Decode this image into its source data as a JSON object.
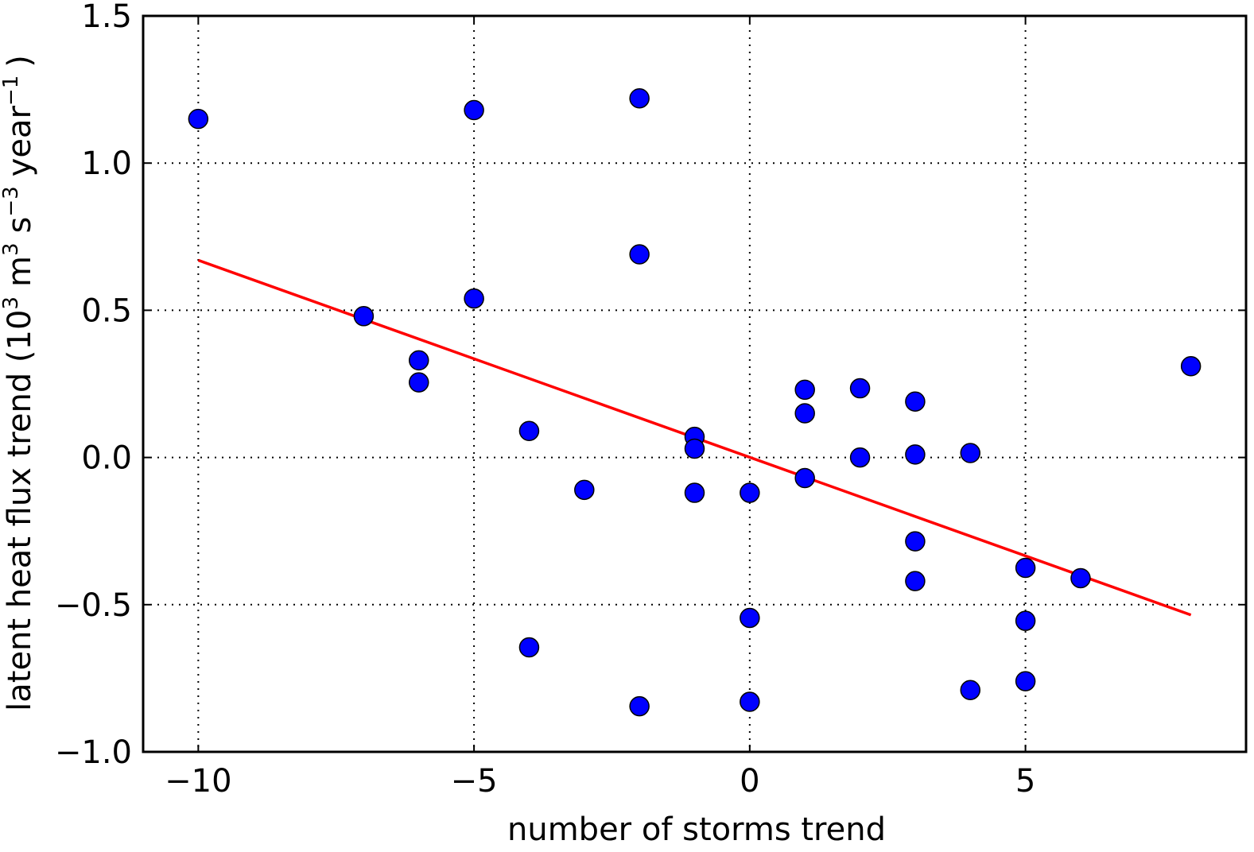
{
  "chart_data": {
    "type": "scatter",
    "title": "",
    "xlabel": "number of storms trend",
    "ylabel": "latent heat flux trend (10³ m³ s⁻³ year⁻¹)",
    "ylabel_parts": {
      "prefix": "latent heat flux trend (10",
      "exp1": "3",
      "m": "m",
      "exp2": "3",
      "s": "s",
      "exp3": "−3",
      "year": "year",
      "exp4": "−1",
      "close": ")"
    },
    "xlim": [
      -11,
      9
    ],
    "ylim": [
      -1.0,
      1.5
    ],
    "xticks": [
      -10,
      -5,
      0,
      5
    ],
    "xtick_labels": [
      "−10",
      "−5",
      "0",
      "5"
    ],
    "yticks": [
      -1.0,
      -0.5,
      0.0,
      0.5,
      1.0,
      1.5
    ],
    "ytick_labels": [
      "−1.0",
      "−0.5",
      "0.0",
      "0.5",
      "1.0",
      "1.5"
    ],
    "grid": true,
    "series": [
      {
        "type": "scatter",
        "color": "#0000ff",
        "edgecolor": "#000000",
        "points": [
          {
            "x": -10,
            "y": 1.15
          },
          {
            "x": -7,
            "y": 0.48
          },
          {
            "x": -6,
            "y": 0.33
          },
          {
            "x": -6,
            "y": 0.255
          },
          {
            "x": -5,
            "y": 1.18
          },
          {
            "x": -5,
            "y": 0.54
          },
          {
            "x": -4,
            "y": 0.09
          },
          {
            "x": -4,
            "y": -0.645
          },
          {
            "x": -3,
            "y": -0.11
          },
          {
            "x": -2,
            "y": 1.22
          },
          {
            "x": -2,
            "y": 0.69
          },
          {
            "x": -2,
            "y": -0.845
          },
          {
            "x": -1,
            "y": 0.07
          },
          {
            "x": -1,
            "y": 0.03
          },
          {
            "x": -1,
            "y": -0.12
          },
          {
            "x": 0,
            "y": -0.12
          },
          {
            "x": 0,
            "y": -0.545
          },
          {
            "x": 0,
            "y": -0.83
          },
          {
            "x": 1,
            "y": 0.23
          },
          {
            "x": 1,
            "y": 0.15
          },
          {
            "x": 1,
            "y": -0.07
          },
          {
            "x": 2,
            "y": 0.235
          },
          {
            "x": 2,
            "y": 0.0
          },
          {
            "x": 3,
            "y": 0.19
          },
          {
            "x": 3,
            "y": 0.01
          },
          {
            "x": 3,
            "y": -0.285
          },
          {
            "x": 3,
            "y": -0.42
          },
          {
            "x": 4,
            "y": 0.015
          },
          {
            "x": 4,
            "y": -0.79
          },
          {
            "x": 5,
            "y": -0.375
          },
          {
            "x": 5,
            "y": -0.555
          },
          {
            "x": 5,
            "y": -0.76
          },
          {
            "x": 6,
            "y": -0.41
          },
          {
            "x": 8,
            "y": 0.31
          }
        ]
      },
      {
        "type": "line",
        "color": "#ff0000",
        "points": [
          {
            "x": -10,
            "y": 0.67
          },
          {
            "x": 8,
            "y": -0.535
          }
        ]
      }
    ]
  }
}
